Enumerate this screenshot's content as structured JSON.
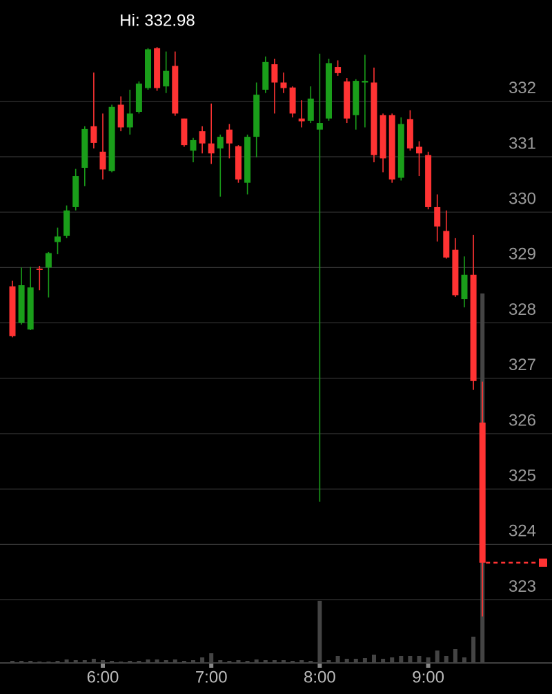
{
  "chart_data": {
    "type": "candlestick",
    "hi_label": "Hi: 332.98",
    "x": [
      "5:10",
      "5:15",
      "5:20",
      "5:25",
      "5:30",
      "5:35",
      "5:40",
      "5:45",
      "5:50",
      "5:55",
      "6:00",
      "6:05",
      "6:10",
      "6:15",
      "6:20",
      "6:25",
      "6:30",
      "6:35",
      "6:40",
      "6:45",
      "6:50",
      "6:55",
      "7:00",
      "7:05",
      "7:10",
      "7:15",
      "7:20",
      "7:25",
      "7:30",
      "7:35",
      "7:40",
      "7:45",
      "7:50",
      "7:55",
      "8:00",
      "8:05",
      "8:10",
      "8:15",
      "8:20",
      "8:25",
      "8:30",
      "8:35",
      "8:40",
      "8:45",
      "8:50",
      "8:55",
      "9:00",
      "9:05",
      "9:10",
      "9:15",
      "9:20",
      "9:25",
      "9:30"
    ],
    "open": [
      328.66,
      328.0,
      327.88,
      328.98,
      329.0,
      329.46,
      329.57,
      330.09,
      330.8,
      331.55,
      331.09,
      330.74,
      331.94,
      331.53,
      331.81,
      332.24,
      332.96,
      332.27,
      332.64,
      331.69,
      331.11,
      331.46,
      331.24,
      331.15,
      331.49,
      331.19,
      330.53,
      331.36,
      332.21,
      332.67,
      332.34,
      332.25,
      331.69,
      331.65,
      331.49,
      331.69,
      332.62,
      332.36,
      331.75,
      332.34,
      332.34,
      331.75,
      331.75,
      330.62,
      331.68,
      331.18,
      331.03,
      330.09,
      329.66,
      329.32,
      328.43,
      328.87,
      326.2
    ],
    "high": [
      328.76,
      329.0,
      329.01,
      329.03,
      329.28,
      329.72,
      330.12,
      330.78,
      331.55,
      332.52,
      331.78,
      331.94,
      332.09,
      332.21,
      332.36,
      332.96,
      332.98,
      332.9,
      332.9,
      331.69,
      331.34,
      331.55,
      331.96,
      331.4,
      331.59,
      331.21,
      331.4,
      332.34,
      332.81,
      332.77,
      332.52,
      332.27,
      332.02,
      332.27,
      332.86,
      332.77,
      332.74,
      332.42,
      332.4,
      332.84,
      332.61,
      331.78,
      331.78,
      331.71,
      331.84,
      331.28,
      331.09,
      330.32,
      330.03,
      329.53,
      329.2,
      329.59,
      326.94
    ],
    "low": [
      327.74,
      327.97,
      327.87,
      328.59,
      328.46,
      329.24,
      329.53,
      330.03,
      330.47,
      331.15,
      330.59,
      330.72,
      331.46,
      331.4,
      331.78,
      332.21,
      332.19,
      332.15,
      331.74,
      331.18,
      330.9,
      331.06,
      330.87,
      330.28,
      330.97,
      330.53,
      330.32,
      330.99,
      332.15,
      331.78,
      332.15,
      331.71,
      331.53,
      331.61,
      324.77,
      331.65,
      332.46,
      331.61,
      331.49,
      331.53,
      330.9,
      330.72,
      330.53,
      330.57,
      331.11,
      330.65,
      330.05,
      329.47,
      329.16,
      328.47,
      328.28,
      326.79,
      322.7
    ],
    "close": [
      327.76,
      328.68,
      328.64,
      328.96,
      329.26,
      329.56,
      330.03,
      330.65,
      331.5,
      331.25,
      330.77,
      331.9,
      331.53,
      331.78,
      332.32,
      332.94,
      332.24,
      332.55,
      331.78,
      331.21,
      331.3,
      331.24,
      331.06,
      331.36,
      331.24,
      330.59,
      331.36,
      332.12,
      332.71,
      332.34,
      332.24,
      331.78,
      331.64,
      332.05,
      331.61,
      332.69,
      332.51,
      331.69,
      332.37,
      332.37,
      331.03,
      330.97,
      330.59,
      331.59,
      331.15,
      331.06,
      330.09,
      329.74,
      329.18,
      328.5,
      328.87,
      326.95,
      323.67
    ],
    "volume": [
      3,
      3,
      3,
      2,
      2,
      3,
      5,
      4,
      4,
      6,
      4,
      3,
      2,
      3,
      3,
      5,
      5,
      4,
      5,
      3,
      4,
      8,
      14,
      4,
      3,
      4,
      3,
      5,
      4,
      4,
      4,
      3,
      4,
      3,
      90,
      4,
      10,
      6,
      6,
      7,
      12,
      6,
      8,
      10,
      10,
      10,
      8,
      18,
      10,
      20,
      8,
      38,
      535
    ],
    "vlim": [
      0,
      560
    ],
    "last": 323.67,
    "ylim": [
      321.86,
      333.83
    ],
    "yticks": [
      323,
      324,
      325,
      326,
      327,
      328,
      329,
      330,
      331,
      332
    ],
    "xticks": [
      "6:00",
      "7:00",
      "8:00",
      "9:00"
    ],
    "grid": true,
    "up_color": "#1a9e1a",
    "down_color": "#ff3333",
    "volume_color": "#444444"
  }
}
